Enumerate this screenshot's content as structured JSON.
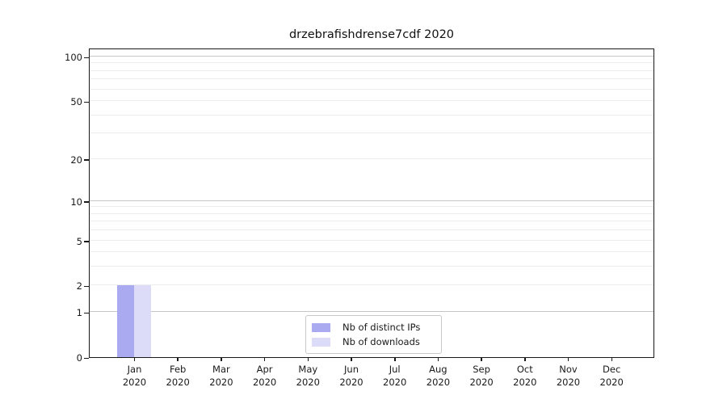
{
  "chart_data": {
    "type": "bar",
    "title": "drzebrafishdrense7cdf 2020",
    "year": "2020",
    "categories": [
      "Jan",
      "Feb",
      "Mar",
      "Apr",
      "May",
      "Jun",
      "Jul",
      "Aug",
      "Sep",
      "Oct",
      "Nov",
      "Dec"
    ],
    "series": [
      {
        "name": "Nb of distinct IPs",
        "color": "#aaaaf0",
        "values": [
          2,
          0,
          0,
          0,
          0,
          0,
          0,
          0,
          0,
          0,
          0,
          0
        ]
      },
      {
        "name": "Nb of downloads",
        "color": "#dcdcf8",
        "values": [
          2,
          0,
          0,
          0,
          0,
          0,
          0,
          0,
          0,
          0,
          0,
          0
        ]
      }
    ],
    "yscale": "log1p",
    "ylim": [
      0,
      113
    ],
    "yticks": [
      0,
      1,
      2,
      5,
      10,
      20,
      50,
      100
    ],
    "grid": {
      "minor_values": [
        2,
        3,
        4,
        5,
        6,
        7,
        8,
        9,
        20,
        30,
        40,
        50,
        60,
        70,
        80,
        90
      ],
      "major_values": [
        1,
        10,
        100
      ]
    },
    "legend_position": "lower center",
    "xlabel": "",
    "ylabel": ""
  },
  "style": {
    "background": "#ffffff",
    "bar_distinct_ips": "#aaaaf0",
    "bar_downloads": "#dcdcf8",
    "grid_minor": "#ececec",
    "grid_major": "#c6c6c6",
    "spine": "#1a1a1a",
    "text": "#1a1a1a",
    "legend_border": "#c9c9c9"
  }
}
